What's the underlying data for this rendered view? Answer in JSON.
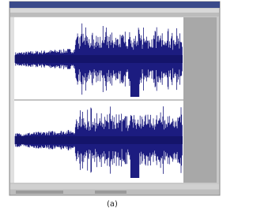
{
  "caption": "(a)"
}
